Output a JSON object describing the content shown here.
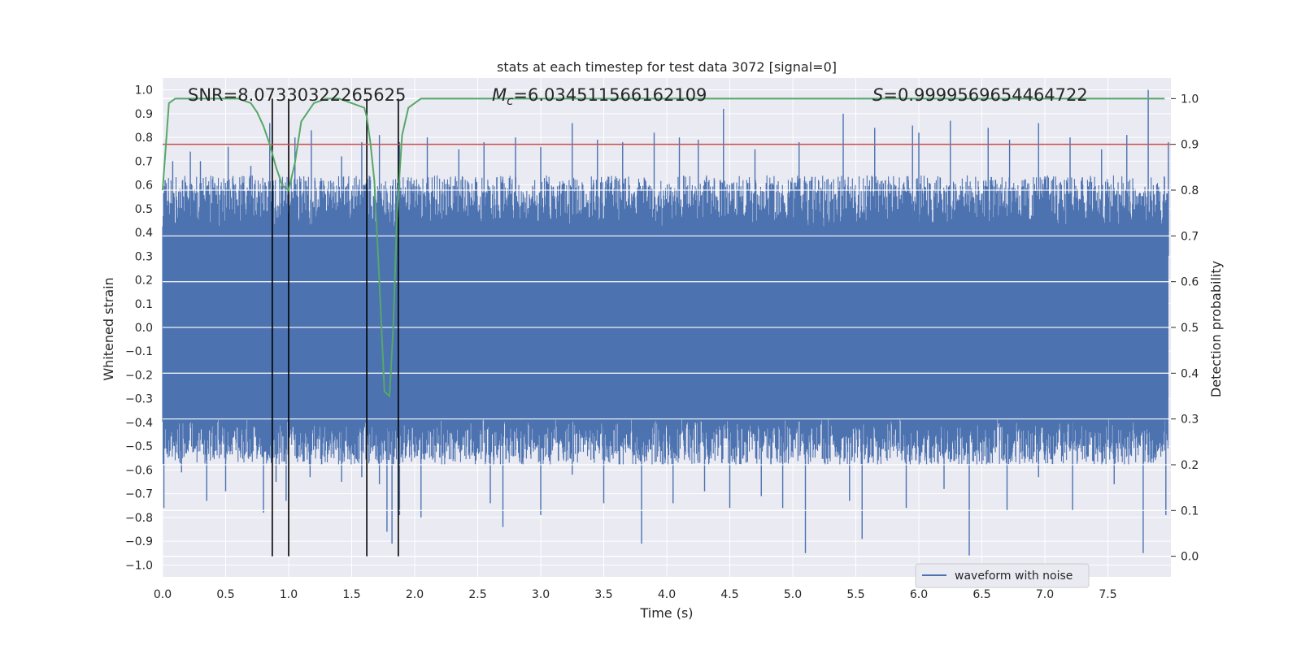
{
  "chart_data": {
    "type": "line",
    "title": "stats at each timestep for test data 3072 [signal=0]",
    "xlabel": "Time (s)",
    "ylabel": "Whitened strain",
    "y2label": "Detection probability",
    "xlim": [
      0.0,
      8.0
    ],
    "ylim": [
      -1.05,
      1.05
    ],
    "y2lim": [
      -0.045,
      1.045
    ],
    "xticks": [
      "0.0",
      "0.5",
      "1.0",
      "1.5",
      "2.0",
      "2.5",
      "3.0",
      "3.5",
      "4.0",
      "4.5",
      "5.0",
      "5.5",
      "6.0",
      "6.5",
      "7.0",
      "7.5"
    ],
    "yticks": [
      "1.0",
      "0.9",
      "0.8",
      "0.7",
      "0.6",
      "0.5",
      "0.4",
      "0.3",
      "0.2",
      "0.1",
      "0.0",
      "-0.1",
      "-0.2",
      "-0.3",
      "-0.4",
      "-0.5",
      "-0.6",
      "-0.7",
      "-0.8",
      "-0.9",
      "-1.0"
    ],
    "y2ticks": [
      "1.0",
      "0.9",
      "0.8",
      "0.7",
      "0.6",
      "0.5",
      "0.4",
      "0.3",
      "0.2",
      "0.1",
      "0.0"
    ],
    "annotations": {
      "snr": "SNR=8.07330322265625",
      "mc_symbol": "M",
      "mc_sub": "c",
      "mc_value": "=6.034511566162109",
      "s_symbol": "S",
      "s_value": "=0.9999569654464722"
    },
    "threshold": 0.9,
    "vlines": [
      0.87,
      1.0,
      1.62,
      1.87
    ],
    "legend": [
      {
        "name": "waveform with noise",
        "color": "#4c72b0"
      }
    ],
    "series": [
      {
        "name": "waveform with noise",
        "axis": "left",
        "color": "#4c72b0",
        "spikes_up": [
          [
            0.02,
            0.62
          ],
          [
            0.08,
            0.7
          ],
          [
            0.22,
            0.74
          ],
          [
            0.3,
            0.7
          ],
          [
            0.52,
            0.76
          ],
          [
            0.7,
            0.68
          ],
          [
            0.85,
            0.86
          ],
          [
            1.05,
            0.8
          ],
          [
            1.18,
            0.83
          ],
          [
            1.42,
            0.72
          ],
          [
            1.58,
            0.78
          ],
          [
            1.72,
            0.81
          ],
          [
            1.88,
            0.78
          ],
          [
            2.1,
            0.8
          ],
          [
            2.35,
            0.75
          ],
          [
            2.55,
            0.78
          ],
          [
            2.8,
            0.8
          ],
          [
            3.0,
            0.76
          ],
          [
            3.25,
            0.86
          ],
          [
            3.45,
            0.79
          ],
          [
            3.65,
            0.78
          ],
          [
            3.9,
            0.82
          ],
          [
            4.1,
            0.8
          ],
          [
            4.25,
            0.79
          ],
          [
            4.45,
            0.92
          ],
          [
            4.7,
            0.75
          ],
          [
            5.05,
            0.78
          ],
          [
            5.4,
            0.9
          ],
          [
            5.65,
            0.84
          ],
          [
            5.95,
            0.85
          ],
          [
            6.0,
            0.82
          ],
          [
            6.25,
            0.87
          ],
          [
            6.55,
            0.84
          ],
          [
            6.72,
            0.79
          ],
          [
            6.95,
            0.86
          ],
          [
            7.2,
            0.8
          ],
          [
            7.45,
            0.75
          ],
          [
            7.65,
            0.81
          ],
          [
            7.82,
            1.0
          ],
          [
            7.98,
            0.78
          ]
        ],
        "spikes_down": [
          [
            0.01,
            -0.76
          ],
          [
            0.15,
            -0.61
          ],
          [
            0.35,
            -0.73
          ],
          [
            0.5,
            -0.69
          ],
          [
            0.8,
            -0.78
          ],
          [
            0.9,
            -0.65
          ],
          [
            0.98,
            -0.73
          ],
          [
            1.17,
            -0.63
          ],
          [
            1.42,
            -0.65
          ],
          [
            1.58,
            -0.63
          ],
          [
            1.72,
            -0.66
          ],
          [
            1.78,
            -0.86
          ],
          [
            1.82,
            -0.91
          ],
          [
            1.88,
            -0.79
          ],
          [
            2.05,
            -0.8
          ],
          [
            2.6,
            -0.74
          ],
          [
            2.7,
            -0.84
          ],
          [
            3.0,
            -0.79
          ],
          [
            3.25,
            -0.62
          ],
          [
            3.5,
            -0.74
          ],
          [
            3.8,
            -0.91
          ],
          [
            4.05,
            -0.74
          ],
          [
            4.3,
            -0.69
          ],
          [
            4.5,
            -0.76
          ],
          [
            4.75,
            -0.71
          ],
          [
            4.92,
            -0.76
          ],
          [
            5.1,
            -0.95
          ],
          [
            5.45,
            -0.73
          ],
          [
            5.55,
            -0.89
          ],
          [
            5.9,
            -0.76
          ],
          [
            6.2,
            -0.68
          ],
          [
            6.4,
            -0.96
          ],
          [
            6.7,
            -0.77
          ],
          [
            6.95,
            -0.63
          ],
          [
            7.22,
            -0.77
          ],
          [
            7.55,
            -0.66
          ],
          [
            7.78,
            -0.95
          ],
          [
            7.96,
            -0.79
          ]
        ]
      },
      {
        "name": "detection probability",
        "axis": "right",
        "color": "#55a868",
        "x": [
          0.0,
          0.05,
          0.1,
          0.2,
          0.4,
          0.6,
          0.7,
          0.75,
          0.8,
          0.85,
          0.9,
          0.95,
          1.0,
          1.05,
          1.1,
          1.2,
          1.3,
          1.4,
          1.5,
          1.6,
          1.62,
          1.65,
          1.68,
          1.72,
          1.76,
          1.8,
          1.83,
          1.86,
          1.9,
          1.95,
          2.0,
          2.05,
          2.1,
          2.2,
          2.5,
          3.0,
          4.0,
          5.0,
          6.0,
          7.0,
          7.95
        ],
        "y": [
          0.8,
          0.99,
          1.0,
          1.0,
          1.0,
          1.0,
          0.99,
          0.97,
          0.94,
          0.9,
          0.85,
          0.81,
          0.8,
          0.86,
          0.95,
          0.99,
          1.0,
          1.0,
          0.99,
          0.98,
          0.96,
          0.9,
          0.82,
          0.6,
          0.36,
          0.35,
          0.5,
          0.75,
          0.92,
          0.98,
          0.99,
          1.0,
          1.0,
          1.0,
          1.0,
          1.0,
          1.0,
          1.0,
          1.0,
          1.0,
          1.0
        ]
      }
    ]
  }
}
